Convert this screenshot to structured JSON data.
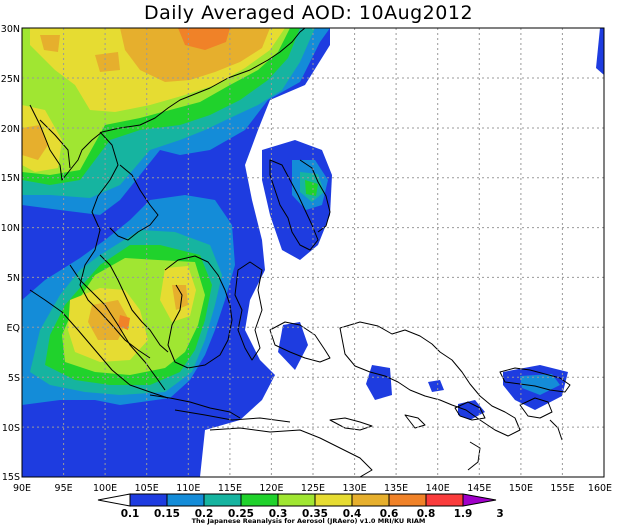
{
  "title": "Daily Averaged AOD: 10Aug2012",
  "credit": "The Japanese Reanalysis for Aerosol (JRAero) v1.0 MRI/KU RIAM",
  "axes": {
    "lon_min": 90,
    "lon_max": 160,
    "lat_min": -15,
    "lat_max": 30,
    "x_ticks": [
      "90E",
      "95E",
      "100E",
      "105E",
      "110E",
      "115E",
      "120E",
      "125E",
      "130E",
      "135E",
      "140E",
      "145E",
      "150E",
      "155E",
      "160E"
    ],
    "y_ticks": [
      "15S",
      "10S",
      "5S",
      "EQ",
      "5N",
      "10N",
      "15N",
      "20N",
      "25N",
      "30N"
    ]
  },
  "colorbar": {
    "levels": [
      "0.1",
      "0.15",
      "0.2",
      "0.25",
      "0.3",
      "0.35",
      "0.4",
      "0.6",
      "0.8",
      "1.9",
      "3"
    ],
    "colors": [
      "#1e3ce0",
      "#148cd8",
      "#16b4a0",
      "#20d22c",
      "#a0e632",
      "#e6dc32",
      "#e6af2d",
      "#f08228",
      "#fa3c3c",
      "#a000c8"
    ]
  },
  "map_colors": {
    "background": "#ffffff",
    "coast": "#000000",
    "grid": "#b0b0b0"
  }
}
